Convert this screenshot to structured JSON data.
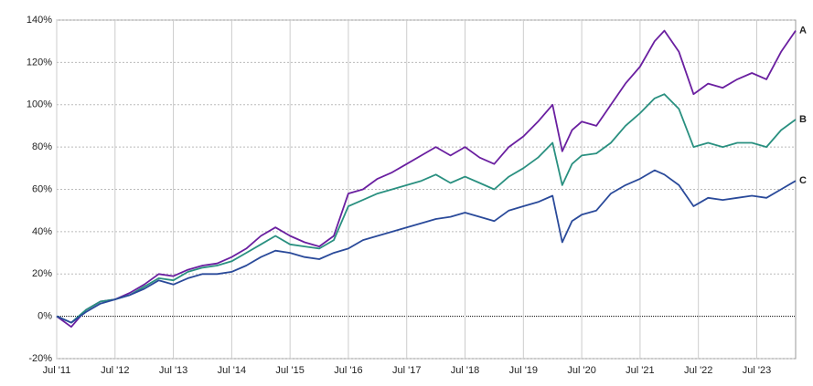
{
  "chart_data": {
    "type": "line",
    "x": [
      "2011-07",
      "2011-10",
      "2012-01",
      "2012-04",
      "2012-07",
      "2012-10",
      "2013-01",
      "2013-04",
      "2013-07",
      "2013-10",
      "2014-01",
      "2014-04",
      "2014-07",
      "2014-10",
      "2015-01",
      "2015-04",
      "2015-07",
      "2015-10",
      "2016-01",
      "2016-04",
      "2016-07",
      "2016-10",
      "2017-01",
      "2017-04",
      "2017-07",
      "2017-10",
      "2018-01",
      "2018-04",
      "2018-07",
      "2018-10",
      "2019-01",
      "2019-04",
      "2019-07",
      "2019-10",
      "2020-01",
      "2020-03",
      "2020-05",
      "2020-07",
      "2020-10",
      "2021-01",
      "2021-04",
      "2021-07",
      "2021-10",
      "2021-12",
      "2022-03",
      "2022-06",
      "2022-09",
      "2022-12",
      "2023-03",
      "2023-06",
      "2023-09",
      "2023-12",
      "2024-03"
    ],
    "series": [
      {
        "name": "A",
        "color": "#6a1fa0",
        "values": [
          0,
          -5,
          3,
          7,
          8,
          11,
          15,
          20,
          19,
          22,
          24,
          25,
          28,
          32,
          38,
          42,
          38,
          35,
          33,
          38,
          58,
          60,
          65,
          68,
          72,
          76,
          80,
          76,
          80,
          75,
          72,
          80,
          85,
          92,
          100,
          78,
          88,
          92,
          90,
          100,
          110,
          118,
          130,
          135,
          125,
          105,
          110,
          108,
          112,
          115,
          112,
          125,
          135
        ]
      },
      {
        "name": "B",
        "color": "#2a9080",
        "values": [
          0,
          -3,
          3,
          7,
          8,
          10,
          14,
          18,
          17,
          21,
          23,
          24,
          26,
          30,
          34,
          38,
          34,
          33,
          32,
          36,
          52,
          55,
          58,
          60,
          62,
          64,
          67,
          63,
          66,
          63,
          60,
          66,
          70,
          75,
          82,
          62,
          72,
          76,
          77,
          82,
          90,
          96,
          103,
          105,
          98,
          80,
          82,
          80,
          82,
          82,
          80,
          88,
          93
        ]
      },
      {
        "name": "C",
        "color": "#2a4a9a",
        "values": [
          0,
          -3,
          2,
          6,
          8,
          10,
          13,
          17,
          15,
          18,
          20,
          20,
          21,
          24,
          28,
          31,
          30,
          28,
          27,
          30,
          32,
          36,
          38,
          40,
          42,
          44,
          46,
          47,
          49,
          47,
          45,
          50,
          52,
          54,
          57,
          35,
          45,
          48,
          50,
          58,
          62,
          65,
          69,
          67,
          62,
          52,
          56,
          55,
          56,
          57,
          56,
          60,
          64
        ]
      }
    ],
    "xlim": [
      "2011-07",
      "2024-03"
    ],
    "xticks": [
      {
        "value": "2011-07",
        "label": "Jul '11"
      },
      {
        "value": "2012-07",
        "label": "Jul '12"
      },
      {
        "value": "2013-07",
        "label": "Jul '13"
      },
      {
        "value": "2014-07",
        "label": "Jul '14"
      },
      {
        "value": "2015-07",
        "label": "Jul '15"
      },
      {
        "value": "2016-07",
        "label": "Jul '16"
      },
      {
        "value": "2017-07",
        "label": "Jul '17"
      },
      {
        "value": "2018-07",
        "label": "Jul '18"
      },
      {
        "value": "2019-07",
        "label": "Jul '19"
      },
      {
        "value": "2020-07",
        "label": "Jul '20"
      },
      {
        "value": "2021-07",
        "label": "Jul '21"
      },
      {
        "value": "2022-07",
        "label": "Jul '22"
      },
      {
        "value": "2023-07",
        "label": "Jul '23"
      }
    ],
    "ylim": [
      -20,
      140
    ],
    "yticks": [
      {
        "value": -20,
        "label": "-20%"
      },
      {
        "value": 0,
        "label": "0%"
      },
      {
        "value": 20,
        "label": "20%"
      },
      {
        "value": 40,
        "label": "40%"
      },
      {
        "value": 60,
        "label": "60%"
      },
      {
        "value": 80,
        "label": "80%"
      },
      {
        "value": 100,
        "label": "100%"
      },
      {
        "value": 120,
        "label": "120%"
      },
      {
        "value": 140,
        "label": "140%"
      }
    ],
    "grid": true
  }
}
